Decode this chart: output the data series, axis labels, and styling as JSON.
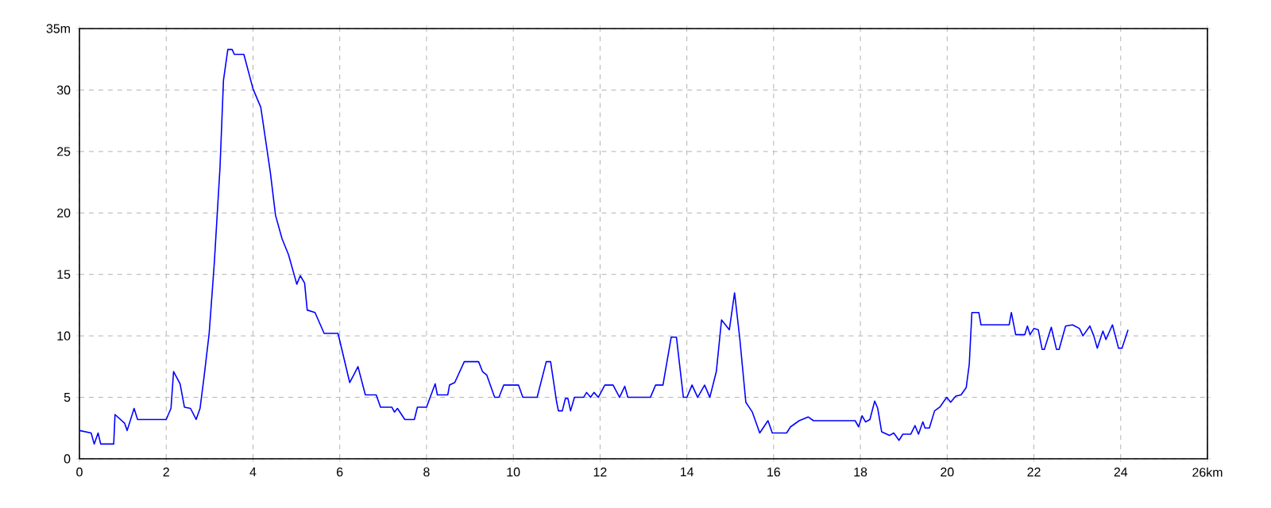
{
  "chart_data": {
    "type": "line",
    "grid": true,
    "xlim": [
      0,
      26
    ],
    "ylim": [
      0,
      35
    ],
    "xticks": [
      0,
      2,
      4,
      6,
      8,
      10,
      12,
      14,
      16,
      18,
      20,
      22,
      24,
      {
        "value": 26,
        "label": "26km"
      }
    ],
    "yticks": [
      0,
      5,
      10,
      15,
      20,
      25,
      30,
      {
        "value": 35,
        "label": "35m"
      }
    ],
    "series": [
      {
        "color": "#0000ff",
        "x": [
          0,
          0.27,
          0.34,
          0.43,
          0.49,
          0.79,
          0.82,
          1.04,
          1.1,
          1.26,
          1.34,
          2.0,
          2.11,
          2.17,
          2.32,
          2.42,
          2.56,
          2.69,
          2.78,
          2.87,
          2.99,
          3.11,
          3.24,
          3.32,
          3.42,
          3.52,
          3.57,
          3.79,
          4.0,
          4.18,
          4.4,
          4.52,
          4.67,
          4.82,
          5.01,
          5.09,
          5.19,
          5.25,
          5.43,
          5.64,
          5.96,
          6.23,
          6.32,
          6.42,
          6.59,
          6.84,
          6.94,
          7.2,
          7.26,
          7.33,
          7.5,
          7.72,
          7.79,
          8.0,
          8.2,
          8.25,
          8.49,
          8.53,
          8.65,
          8.87,
          9.2,
          9.29,
          9.39,
          9.57,
          9.67,
          9.78,
          10.12,
          10.22,
          10.55,
          10.76,
          10.86,
          11.0,
          11.04,
          11.13,
          11.2,
          11.26,
          11.32,
          11.41,
          11.62,
          11.69,
          11.78,
          11.86,
          11.96,
          12.11,
          12.3,
          12.45,
          12.57,
          12.64,
          13.16,
          13.28,
          13.45,
          13.64,
          13.76,
          13.92,
          14.0,
          14.12,
          14.25,
          14.41,
          14.53,
          14.68,
          14.8,
          14.98,
          15.1,
          15.22,
          15.36,
          15.51,
          15.68,
          15.87,
          15.97,
          16.3,
          16.39,
          16.59,
          16.8,
          16.92,
          17.88,
          17.96,
          18.04,
          18.12,
          18.22,
          18.33,
          18.4,
          18.49,
          18.67,
          18.77,
          18.89,
          18.98,
          19.16,
          19.26,
          19.34,
          19.44,
          19.49,
          19.59,
          19.71,
          19.83,
          19.99,
          20.08,
          20.2,
          20.32,
          20.44,
          20.51,
          20.57,
          20.73,
          20.78,
          21.43,
          21.48,
          21.58,
          21.79,
          21.85,
          21.91,
          22.0,
          22.1,
          22.19,
          22.24,
          22.4,
          22.52,
          22.58,
          22.73,
          22.89,
          23.05,
          23.13,
          23.29,
          23.38,
          23.46,
          23.59,
          23.66,
          23.81,
          23.95,
          24.03,
          24.17
        ],
        "values": [
          2.3,
          2.1,
          1.2,
          2.1,
          1.2,
          1.2,
          3.6,
          2.9,
          2.3,
          4.1,
          3.2,
          3.2,
          4.1,
          7.1,
          6.1,
          4.2,
          4.1,
          3.2,
          4.1,
          6.6,
          10.2,
          16,
          23.7,
          30.8,
          33.3,
          33.3,
          32.9,
          32.9,
          30.1,
          28.6,
          23.3,
          19.8,
          17.9,
          16.6,
          14.2,
          14.9,
          14.3,
          12.1,
          11.9,
          10.2,
          10.2,
          6.2,
          6.8,
          7.5,
          5.2,
          5.2,
          4.2,
          4.2,
          3.8,
          4.1,
          3.2,
          3.2,
          4.2,
          4.2,
          6.1,
          5.2,
          5.2,
          6.0,
          6.2,
          7.9,
          7.9,
          7.1,
          6.8,
          5.0,
          5.0,
          6.0,
          6.0,
          5.0,
          5.0,
          7.9,
          7.9,
          4.6,
          3.9,
          3.9,
          4.9,
          4.9,
          3.9,
          5.0,
          5.0,
          5.4,
          5.0,
          5.4,
          5.0,
          6.0,
          6.0,
          5.0,
          5.9,
          5.0,
          5.0,
          6.0,
          6.0,
          9.9,
          9.9,
          5.0,
          5.0,
          6.0,
          5.0,
          6.0,
          5.0,
          7.1,
          11.3,
          10.5,
          13.5,
          9.8,
          4.6,
          3.8,
          2.1,
          3.1,
          2.1,
          2.1,
          2.6,
          3.1,
          3.4,
          3.1,
          3.1,
          2.6,
          3.5,
          3.0,
          3.2,
          4.7,
          4.1,
          2.2,
          1.9,
          2.1,
          1.5,
          2.0,
          2.0,
          2.7,
          2.0,
          3.0,
          2.5,
          2.5,
          3.9,
          4.2,
          5.0,
          4.6,
          5.1,
          5.2,
          5.8,
          7.7,
          11.9,
          11.9,
          10.9,
          10.9,
          11.9,
          10.1,
          10.1,
          10.8,
          10.1,
          10.6,
          10.5,
          8.9,
          8.9,
          10.7,
          8.9,
          8.9,
          10.8,
          10.9,
          10.6,
          10.0,
          10.8,
          10.0,
          9.0,
          10.4,
          9.7,
          10.9,
          9.0,
          9.0,
          10.5
        ]
      }
    ]
  }
}
